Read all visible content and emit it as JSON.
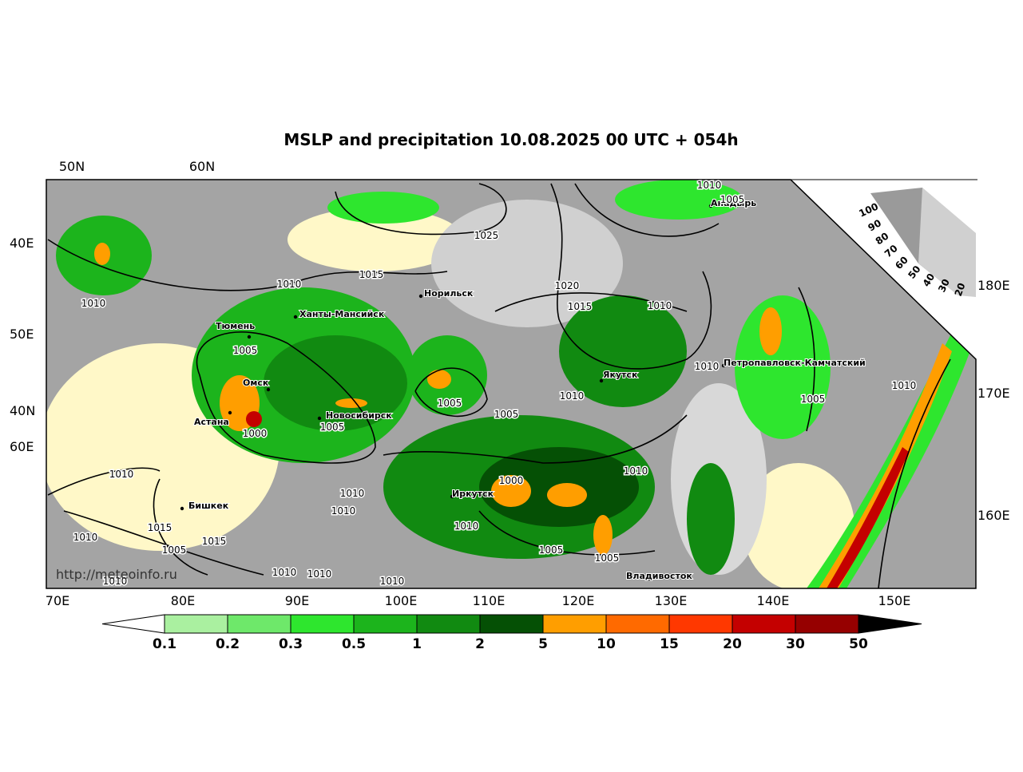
{
  "title": "MSLP and precipitation 10.08.2025 00 UTC + 054h",
  "top_labels": [
    "50N",
    "60N"
  ],
  "left_labels": [
    "40E",
    "50E",
    "40N",
    "60E"
  ],
  "right_labels": [
    "180E",
    "170E",
    "160E"
  ],
  "bottom_labels": [
    "70E",
    "80E",
    "90E",
    "100E",
    "110E",
    "120E",
    "130E",
    "140E",
    "150E"
  ],
  "cities": [
    "Норильск",
    "Ханты-Мансийск",
    "Тюмень",
    "Омск",
    "Астана",
    "Новосибирск",
    "Якутск",
    "Анадырь",
    "Петропавловск-Камчатский",
    "Иркутск",
    "Бишкек",
    "Владивосток"
  ],
  "isobars": [
    1010,
    1005,
    1025,
    1015,
    1010,
    1010,
    1020,
    1015,
    1010,
    1005,
    1010,
    1010,
    1005,
    1005,
    1005,
    1010,
    1000,
    1005,
    1010,
    1010,
    1000,
    1010,
    1010,
    1010,
    1015,
    1010,
    1015,
    1005,
    1005,
    1005,
    1010,
    1010,
    1010,
    1010
  ],
  "cloud_scale": [
    100,
    90,
    80,
    70,
    60,
    50,
    40,
    30,
    20
  ],
  "colorbar": {
    "labels": [
      0.1,
      0.2,
      0.3,
      0.5,
      1,
      2,
      5,
      10,
      15,
      20,
      30,
      50
    ],
    "colors": [
      "#aaf0a0",
      "#6ee86a",
      "#2ee62e",
      "#1cb41c",
      "#118a11",
      "#055005",
      "#ff9e00",
      "#ff6a00",
      "#ff3800",
      "#c40000",
      "#960000"
    ]
  },
  "watermark": "http://meteoinfo.ru"
}
